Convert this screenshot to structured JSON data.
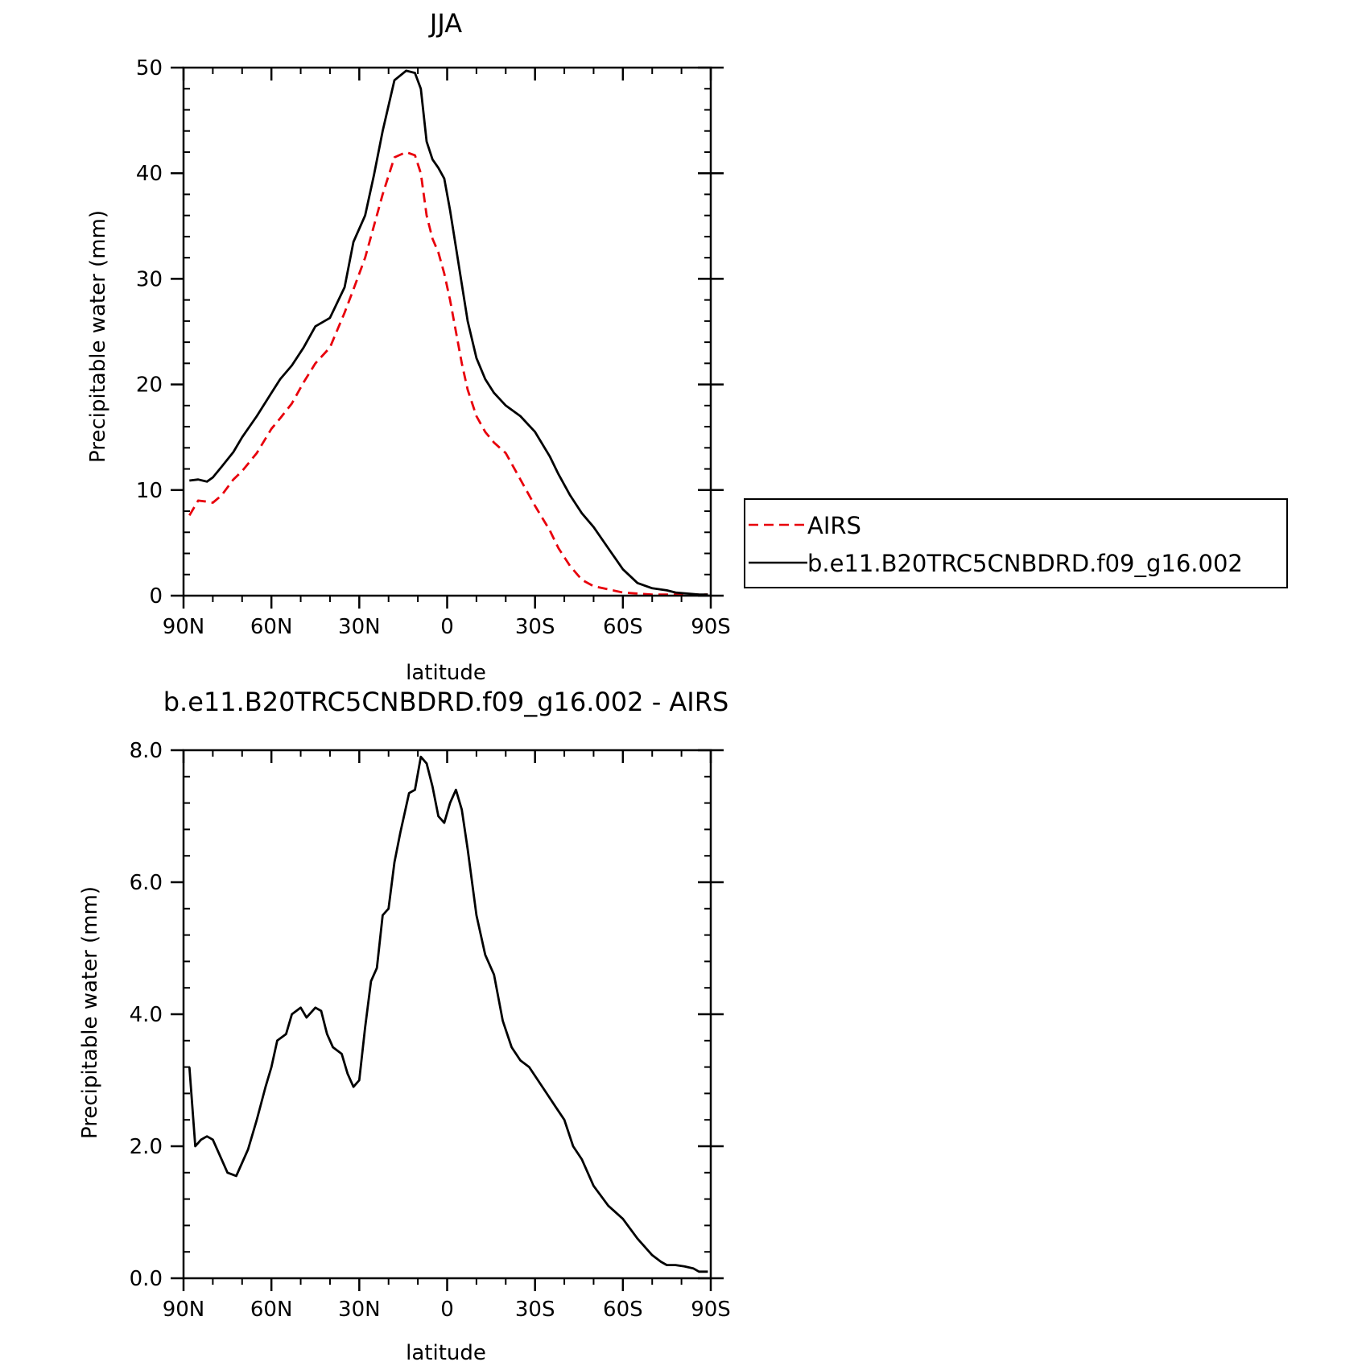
{
  "chart_data": [
    {
      "type": "line",
      "title": "JJA",
      "xlabel": "latitude",
      "ylabel": "Precipitable water (mm)",
      "xlim": [
        90,
        -90
      ],
      "ylim": [
        0,
        50
      ],
      "x_tick_values": [
        90,
        60,
        30,
        0,
        -30,
        -60,
        -90
      ],
      "x_tick_labels": [
        "90N",
        "60N",
        "30N",
        "0",
        "30S",
        "60S",
        "90S"
      ],
      "y_tick_values": [
        0,
        10,
        20,
        30,
        40,
        50
      ],
      "y_tick_labels": [
        "0",
        "10",
        "20",
        "30",
        "40",
        "50"
      ],
      "legend": "outside-right",
      "x": [
        88,
        85,
        82,
        80,
        77,
        73,
        70,
        65,
        60,
        57,
        53,
        49,
        45,
        40,
        35,
        32,
        28,
        25,
        22,
        18,
        14,
        11,
        9,
        7,
        5,
        3,
        1,
        -1,
        -3,
        -5,
        -7,
        -10,
        -13,
        -16,
        -20,
        -25,
        -30,
        -35,
        -38,
        -42,
        -46,
        -50,
        -55,
        -60,
        -65,
        -70,
        -75,
        -78,
        -82,
        -86,
        -89
      ],
      "series": [
        {
          "name": "AIRS",
          "color": "#e8000b",
          "dash": "dashed",
          "values": [
            7.6,
            9.0,
            8.9,
            8.8,
            9.5,
            11.0,
            11.8,
            13.5,
            15.8,
            16.8,
            18.2,
            20.2,
            22.0,
            23.5,
            26.8,
            29.0,
            32.0,
            35.0,
            38.0,
            41.5,
            42.0,
            41.7,
            40.0,
            36.0,
            33.8,
            32.5,
            30.5,
            28.0,
            25.0,
            22.0,
            19.5,
            17.0,
            15.5,
            14.5,
            13.5,
            11.0,
            8.5,
            6.2,
            4.5,
            2.8,
            1.5,
            0.9,
            0.6,
            0.3,
            0.2,
            0.1,
            0.1,
            0.1,
            0.1,
            0.1,
            0.1
          ]
        },
        {
          "name": "b.e11.B20TRC5CNBDRD.f09_g16.002",
          "color": "#000000",
          "dash": "solid",
          "values": [
            10.9,
            11.0,
            10.8,
            11.2,
            12.2,
            13.6,
            15.0,
            17.0,
            19.2,
            20.5,
            21.8,
            23.5,
            25.5,
            26.3,
            29.2,
            33.5,
            36.0,
            39.8,
            44.0,
            48.8,
            49.7,
            49.5,
            48.0,
            43.0,
            41.3,
            40.5,
            39.5,
            36.5,
            33.0,
            29.5,
            26.0,
            22.5,
            20.5,
            19.2,
            18.0,
            17.0,
            15.5,
            13.2,
            11.5,
            9.5,
            7.8,
            6.5,
            4.5,
            2.5,
            1.2,
            0.7,
            0.5,
            0.3,
            0.2,
            0.1,
            0.1
          ]
        }
      ]
    },
    {
      "type": "line",
      "title": "b.e11.B20TRC5CNBDRD.f09_g16.002 - AIRS",
      "xlabel": "latitude",
      "ylabel": "Precipitable water (mm)",
      "xlim": [
        90,
        -90
      ],
      "ylim": [
        0,
        8
      ],
      "x_tick_values": [
        90,
        60,
        30,
        0,
        -30,
        -60,
        -90
      ],
      "x_tick_labels": [
        "90N",
        "60N",
        "30N",
        "0",
        "30S",
        "60S",
        "90S"
      ],
      "y_tick_values": [
        0,
        2,
        4,
        6,
        8
      ],
      "y_tick_labels": [
        "0.0",
        "2.0",
        "4.0",
        "6.0",
        "8.0"
      ],
      "x": [
        88,
        86,
        84,
        82,
        80,
        78,
        75,
        72,
        70,
        68,
        65,
        62,
        60,
        58,
        55,
        53,
        50,
        48,
        45,
        43,
        41,
        39,
        36,
        34,
        32,
        30,
        28,
        26,
        24,
        22,
        20,
        18,
        16,
        13,
        11,
        9,
        7,
        5,
        3,
        1,
        -1,
        -3,
        -5,
        -7,
        -10,
        -13,
        -16,
        -19,
        -22,
        -25,
        -28,
        -31,
        -34,
        -37,
        -40,
        -43,
        -46,
        -50,
        -55,
        -60,
        -65,
        -68,
        -70,
        -73,
        -75,
        -78,
        -81,
        -84,
        -86,
        -89
      ],
      "series": [
        {
          "name": "",
          "color": "#000000",
          "dash": "solid",
          "values": [
            3.2,
            2.0,
            2.1,
            2.15,
            2.1,
            1.9,
            1.6,
            1.55,
            1.75,
            1.95,
            2.4,
            2.9,
            3.2,
            3.6,
            3.7,
            4.0,
            4.1,
            3.95,
            4.1,
            4.05,
            3.7,
            3.5,
            3.4,
            3.1,
            2.9,
            3.0,
            3.8,
            4.5,
            4.7,
            5.5,
            5.6,
            6.3,
            6.75,
            7.35,
            7.4,
            7.9,
            7.8,
            7.45,
            7.0,
            6.9,
            7.2,
            7.4,
            7.1,
            6.5,
            5.5,
            4.9,
            4.6,
            3.9,
            3.5,
            3.3,
            3.2,
            3.0,
            2.8,
            2.6,
            2.4,
            2.0,
            1.8,
            1.4,
            1.1,
            0.9,
            0.6,
            0.45,
            0.35,
            0.25,
            0.2,
            0.2,
            0.18,
            0.15,
            0.1,
            0.1
          ]
        }
      ]
    }
  ]
}
